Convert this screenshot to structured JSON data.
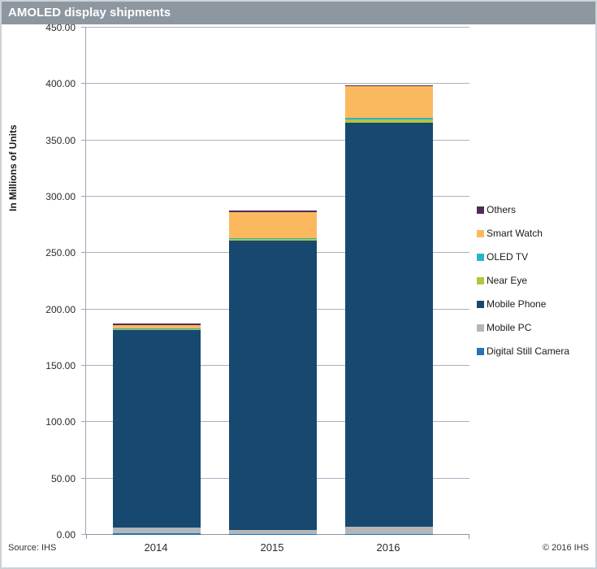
{
  "window": {
    "title": "AMOLED display shipments"
  },
  "footer": {
    "source": "Source: IHS",
    "copyright": "© 2016 IHS"
  },
  "colors": {
    "titlebar_bg": "#8d97a0",
    "titlebar_text": "#ffffff",
    "gridline": "#a9b1c1",
    "axis_line": "#8c95a5"
  },
  "chart_data": {
    "type": "bar",
    "stacked": true,
    "title": "AMOLED display shipments",
    "xlabel": "",
    "ylabel": "In Millions of Units",
    "categories": [
      "2014",
      "2015",
      "2016"
    ],
    "series": [
      {
        "name": "Digital Still Camera",
        "color": "#2273b7",
        "values": [
          1.5,
          0.5,
          0.5
        ]
      },
      {
        "name": "Mobile PC",
        "color": "#b3b7ba",
        "values": [
          5.0,
          3.5,
          6.5
        ]
      },
      {
        "name": "Mobile Phone",
        "color": "#17486f",
        "values": [
          175.0,
          257.0,
          358.5
        ]
      },
      {
        "name": "Near Eye",
        "color": "#b5c43c",
        "values": [
          1.5,
          1.6,
          3.0
        ]
      },
      {
        "name": "OLED TV",
        "color": "#27b5ce",
        "values": [
          0.3,
          0.5,
          1.5
        ]
      },
      {
        "name": "Smart Watch",
        "color": "#fbb95f",
        "values": [
          3.0,
          23.0,
          28.0
        ]
      },
      {
        "name": "Others",
        "color": "#502b5a",
        "values": [
          1.0,
          1.3,
          0.8
        ]
      }
    ],
    "totals": [
      187.3,
      287.4,
      398.8
    ],
    "ylim": [
      0,
      450
    ],
    "ytick_step": 50,
    "ytick_format": "0.00",
    "grid": true,
    "legend_position": "right",
    "legend_order_top_to_bottom": [
      "Others",
      "Smart Watch",
      "OLED TV",
      "Near Eye",
      "Mobile Phone",
      "Mobile PC",
      "Digital Still Camera"
    ]
  }
}
